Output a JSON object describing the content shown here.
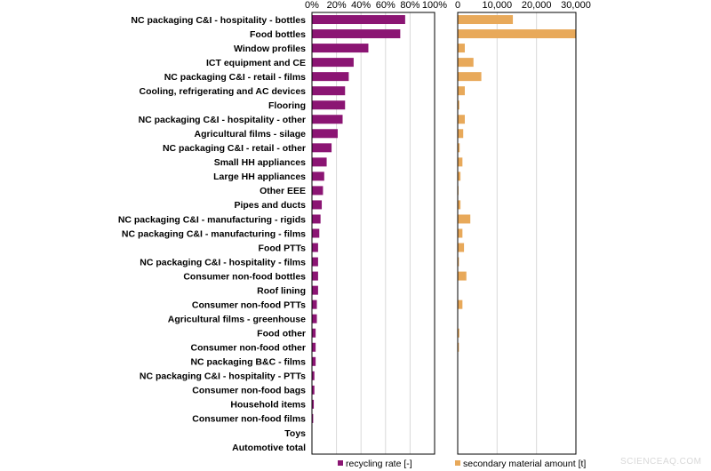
{
  "chart_data": [
    {
      "type": "bar",
      "orientation": "horizontal",
      "series_name": "recycling rate [-]",
      "color": "#8B1573",
      "xlim": [
        0,
        100
      ],
      "xticks": [
        "0%",
        "20%",
        "40%",
        "60%",
        "80%",
        "100%"
      ],
      "categories": [
        "NC packaging C&I - hospitality - bottles",
        "Food bottles",
        "Window profiles",
        "ICT equipment and CE",
        "NC packaging C&I - retail - films",
        "Cooling, refrigerating and AC devices",
        "Flooring",
        "NC packaging C&I - hospitality - other",
        "Agricultural films - silage",
        "NC packaging C&I - retail - other",
        "Small HH appliances",
        "Large HH appliances",
        "Other EEE",
        "Pipes and ducts",
        "NC packaging C&I - manufacturing - rigids",
        "NC packaging C&I - manufacturing - films",
        "Food PTTs",
        "NC packaging C&I - hospitality - films",
        "Consumer non-food bottles",
        "Roof lining",
        "Consumer non-food PTTs",
        "Agricultural films - greenhouse",
        "Food other",
        "Consumer non-food other",
        "NC packaging B&C - films",
        "NC packaging C&I - hospitality - PTTs",
        "Consumer non-food bags",
        "Household items",
        "Consumer non-food films",
        "Toys",
        "Automotive total"
      ],
      "values": [
        76,
        72,
        46,
        34,
        30,
        27,
        27,
        25,
        21,
        16,
        12,
        10,
        9,
        8,
        7,
        6,
        5,
        5,
        5,
        5,
        4,
        4,
        3,
        3,
        3,
        2,
        2,
        1.5,
        1,
        0,
        0
      ]
    },
    {
      "type": "bar",
      "orientation": "horizontal",
      "series_name": "secondary material amount [t]",
      "color": "#E8A95A",
      "xlim": [
        0,
        30000
      ],
      "xticks": [
        "0",
        "10,000",
        "20,000",
        "30,000"
      ],
      "values": [
        14000,
        30000,
        1800,
        4000,
        6000,
        1800,
        400,
        1800,
        1400,
        500,
        1200,
        700,
        200,
        700,
        3200,
        1200,
        1600,
        300,
        2200,
        0,
        1200,
        0,
        400,
        300,
        0,
        0,
        0,
        0,
        0,
        0,
        0
      ]
    }
  ],
  "watermark": "SCIENCEAQ.COM"
}
